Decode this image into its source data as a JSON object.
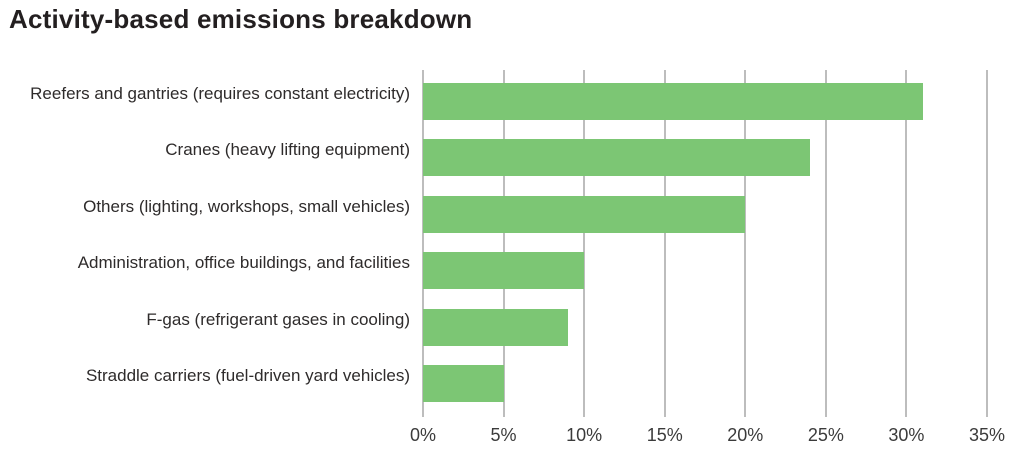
{
  "title": "Activity-based emissions breakdown",
  "colors": {
    "background": "#ffffff",
    "bar": "#7CC674",
    "gridline": "#BDBDBD",
    "title_text": "#231F20",
    "label_text": "#2E2B2B",
    "tick_text": "#3B3B3B"
  },
  "chart_data": {
    "type": "bar",
    "orientation": "horizontal",
    "title": "Activity-based emissions breakdown",
    "categories": [
      "Reefers and gantries (requires constant electricity)",
      "Cranes (heavy lifting equipment)",
      "Others (lighting, workshops, small vehicles)",
      "Administration, office buildings, and facilities",
      "F-gas (refrigerant gases in cooling)",
      "Straddle carriers (fuel-driven yard vehicles)"
    ],
    "values": [
      31,
      24,
      20,
      10,
      9,
      5
    ],
    "unit": "%",
    "xlabel": "",
    "ylabel": "",
    "xlim": [
      0,
      35
    ],
    "xtick_values": [
      0,
      5,
      10,
      15,
      20,
      25,
      30,
      35
    ],
    "xtick_labels": [
      "0%",
      "5%",
      "10%",
      "15%",
      "20%",
      "25%",
      "30%",
      "35%"
    ],
    "grid": "vertical",
    "legend": "none"
  }
}
